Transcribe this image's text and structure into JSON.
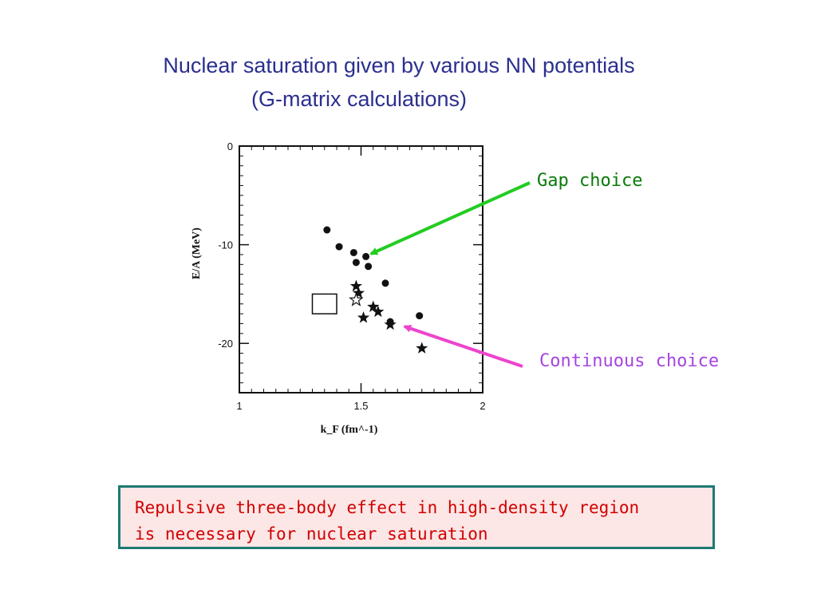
{
  "slide": {
    "title_line1": "Nuclear saturation given by various NN potentials",
    "title_line2": "(G-matrix calculations)",
    "gap_label": "Gap choice",
    "continuous_label": "Continuous choice",
    "conclusion_line1": "Repulsive three-body effect in high-density region",
    "conclusion_line2": "is necessary for nuclear saturation",
    "colors": {
      "title": "#2b2f8f",
      "gap_arrow": "#22cc22",
      "continuous_arrow": "#ee44cc",
      "conclusion_text": "#d00000",
      "conclusion_border": "#1d7a72",
      "conclusion_fill": "#fde6e6"
    }
  },
  "chart_data": {
    "type": "scatter",
    "xlabel": "k_F (fm^-1)",
    "ylabel": "E/A (MeV)",
    "xlim": [
      1,
      2
    ],
    "ylim": [
      -25,
      0
    ],
    "xticks": [
      {
        "value": 1,
        "label": "1"
      },
      {
        "value": 1.5,
        "label": "1.5"
      },
      {
        "value": 2,
        "label": "2"
      }
    ],
    "yticks": [
      {
        "value": 0,
        "label": "0"
      },
      {
        "value": -10,
        "label": "-10"
      },
      {
        "value": -20,
        "label": "-20"
      }
    ],
    "series": [
      {
        "marker": "circle",
        "points": [
          {
            "x": 1.36,
            "y": -8.5
          },
          {
            "x": 1.41,
            "y": -10.2
          },
          {
            "x": 1.47,
            "y": -10.8
          },
          {
            "x": 1.52,
            "y": -11.2
          },
          {
            "x": 1.48,
            "y": -11.8
          },
          {
            "x": 1.53,
            "y": -12.2
          },
          {
            "x": 1.6,
            "y": -13.9
          },
          {
            "x": 1.74,
            "y": -17.2
          },
          {
            "x": 1.62,
            "y": -17.8
          }
        ]
      },
      {
        "marker": "star",
        "points": [
          {
            "x": 1.48,
            "y": -14.2
          },
          {
            "x": 1.49,
            "y": -14.9
          },
          {
            "x": 1.55,
            "y": -16.3
          },
          {
            "x": 1.57,
            "y": -16.8
          },
          {
            "x": 1.51,
            "y": -17.4
          },
          {
            "x": 1.62,
            "y": -18.1
          },
          {
            "x": 1.75,
            "y": -20.5
          }
        ]
      },
      {
        "marker": "open-star",
        "points": [
          {
            "x": 1.48,
            "y": -15.6
          }
        ]
      }
    ],
    "empirical_box": {
      "x_min": 1.3,
      "x_max": 1.4,
      "y_min": -17.0,
      "y_max": -15.0
    }
  }
}
